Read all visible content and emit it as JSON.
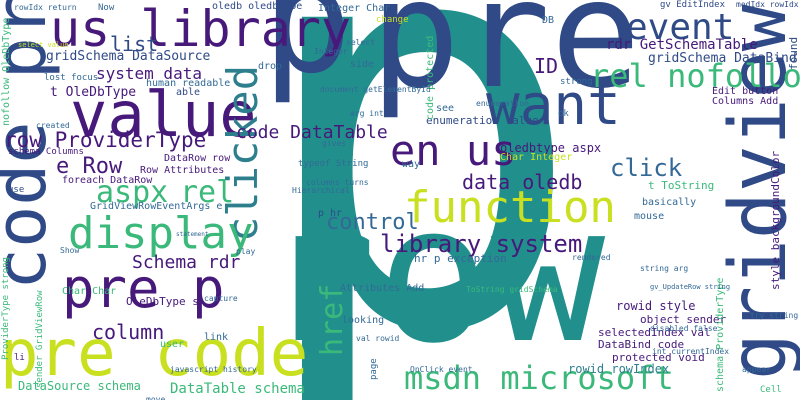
{
  "colors": {
    "background": "#ffffff",
    "navy": "#2f4a87",
    "purple": "#46197a",
    "teal": "#21908d",
    "green": "#3bb97a",
    "lime": "#c9e020",
    "blue": "#336996",
    "gray_teal": "#2d7f8e"
  },
  "words": {
    "p_big": "p",
    "row_big": "row",
    "pre": "pre",
    "p_mid": "p",
    "pre_code_left": "pre code",
    "code_pre": "code pre",
    "us_library": "us library",
    "value": "value",
    "want": "want",
    "gridview": "gridview",
    "clicked": "clicked",
    "function": "function",
    "display": "display",
    "pre_p": "pre p",
    "en_us": "en us",
    "event": "event",
    "rel_nofollow": "rel nofollow",
    "msdn_microsoft": "msdn microsoft",
    "library_system": "library system",
    "href": "href",
    "control": "control",
    "row_providertype": "row ProviderType",
    "code_datatable": "code DataTable",
    "data_oledb": "data oledb",
    "click": "click",
    "aspx": "aspx",
    "rel": "rel",
    "e_row": "e Row",
    "list": "list",
    "system_data": "system data",
    "column": "column",
    "schema_rdr": "Schema rdr",
    "id": "ID",
    "rdr_getschematable": "rdr GetSchemaTable",
    "gridschema_datasource": "gridSchema DataSource",
    "gridschema_databind": "gridSchema DataBind",
    "oledbtype": "t OleDbType",
    "enumeration_value": "enumeration value",
    "oledbtype_aspx": "oledbtype aspx",
    "datatable_schema": "DataTable schema",
    "datasource_schema": "DataSource schema",
    "databind_code": "DataBind code",
    "protected_void": "protected void",
    "selectedindex_val": "selectedIndex val",
    "rowid_rowindex": "rowid rowIndex",
    "rowid_style": "rowid style",
    "object_sender": "object sender",
    "oledbtype_small": "OleDbType s",
    "foreach_datarow": "foreach DataRow",
    "datarow_row": "DataRow row",
    "row_attributes": "Row Attributes",
    "gridviewroweventargs": "GridViewRowEventArgs e",
    "char_char": "Char Char",
    "char_integer": "Char Integer",
    "integer_char": "Integer Char",
    "hr_p_exception": "hr p exception",
    "edit_button": "Edit button",
    "columns_add": "Columns Add",
    "style_backgroundcolor": "style backgroundColor",
    "found": "found",
    "t_tostring": "t ToString",
    "schema_providertype": "schema ProviderType",
    "oledb_oledbtype": "oledb oledbtype",
    "gv_editindex": "gv EditIndex",
    "modidx_rowidx": "modIdx rowIdx",
    "schema_columns": "schema Columns",
    "human_readable": "human readable",
    "lost_focus": "lost focus",
    "able": "able",
    "drop": "drop",
    "side": "side",
    "see": "see",
    "ok": "ok",
    "strong": "strong",
    "mouse": "mouse",
    "basically": "basically",
    "way": "way",
    "code_protected": "code protected",
    "attributes_add": "Attributes Add",
    "looking": "looking",
    "p_hr": "p hr",
    "page": "page",
    "user": "user",
    "link": "link",
    "nofollow_oledbtype": "nofollow OleDbType",
    "providertype_strong": "ProviderType strong",
    "select_value": "select value",
    "typeof_string": "typeof String",
    "columns_turns": "columns turns",
    "hierarchical": "Hierarchical",
    "gives": "gives",
    "document_getelementbyid": "document getElementById",
    "integer": "Integer",
    "change": "change",
    "db": "DB",
    "select": "select",
    "arg_int": "arg int",
    "rendered": "rendered",
    "disabled_false": "disabled false",
    "int_currentindex": "int currentIndex",
    "sender_gridviewrow": "sender GridViewRow",
    "val_rowid": "val rowid",
    "javascript_history": "javascript history",
    "cell": "Cell",
    "onclick_event": "OnClick event",
    "tostring_gridschema": "ToString gridSchema",
    "string_arg": "string arg",
    "use": "use",
    "created": "created",
    "show": "Show",
    "now": "Now",
    "rowidx_return": "rowIdx return",
    "li": "li",
    "capture": "capture",
    "play": "play",
    "move": "move",
    "gv_updaterow": "gv_UpdateRow string",
    "try_string": "try string",
    "appear": "appear",
    "statement": "statement",
    "enumeration": "enumeration"
  }
}
